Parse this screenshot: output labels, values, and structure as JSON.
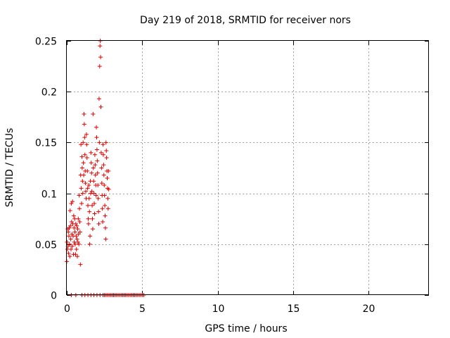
{
  "chart_data": {
    "type": "scatter",
    "title": "Day 219 of 2018, SRMTID for receiver nors",
    "xlabel": "GPS time / hours",
    "ylabel": "SRMTID / TECUs",
    "xlim": [
      0,
      24
    ],
    "ylim": [
      0,
      0.25
    ],
    "xticks": [
      0,
      5,
      10,
      15,
      20
    ],
    "xtick_labels": [
      "0",
      "5",
      "10",
      "15",
      "20"
    ],
    "yticks": [
      0,
      0.05,
      0.1,
      0.15,
      0.2,
      0.25
    ],
    "ytick_labels": [
      "0",
      "0.05",
      "0.1",
      "0.15",
      "0.2",
      "0.25"
    ],
    "grid": true,
    "legend": "none",
    "marker": "plus",
    "color": "#dd0000",
    "series": [
      {
        "points": [
          [
            0.0,
            0.033
          ],
          [
            0.02,
            0.052
          ],
          [
            0.04,
            0.045
          ],
          [
            0.06,
            0.065
          ],
          [
            0.08,
            0.048
          ],
          [
            0.1,
            0.062
          ],
          [
            0.12,
            0.041
          ],
          [
            0.14,
            0.058
          ],
          [
            0.16,
            0.066
          ],
          [
            0.18,
            0.05
          ],
          [
            0.2,
            0.038
          ],
          [
            0.22,
            0.083
          ],
          [
            0.24,
            0.068
          ],
          [
            0.26,
            0.055
          ],
          [
            0.28,
            0.045
          ],
          [
            0.3,
            0.09
          ],
          [
            0.32,
            0.072
          ],
          [
            0.34,
            0.06
          ],
          [
            0.36,
            0.048
          ],
          [
            0.38,
            0.092
          ],
          [
            0.4,
            0.07
          ],
          [
            0.42,
            0.058
          ],
          [
            0.44,
            0.04
          ],
          [
            0.46,
            0.078
          ],
          [
            0.48,
            0.066
          ],
          [
            0.5,
            0.052
          ],
          [
            0.52,
            0.075
          ],
          [
            0.54,
            0.062
          ],
          [
            0.56,
            0.05
          ],
          [
            0.58,
            0.04
          ],
          [
            0.6,
            0.07
          ],
          [
            0.62,
            0.058
          ],
          [
            0.64,
            0.045
          ],
          [
            0.66,
            0.068
          ],
          [
            0.68,
            0.055
          ],
          [
            0.7,
            0.038
          ],
          [
            0.72,
            0.065
          ],
          [
            0.74,
            0.052
          ],
          [
            0.76,
            0.075
          ],
          [
            0.78,
            0.06
          ],
          [
            0.8,
            0.05
          ],
          [
            0.82,
            0.098
          ],
          [
            0.84,
            0.085
          ],
          [
            0.86,
            0.072
          ],
          [
            0.88,
            0.062
          ],
          [
            0.9,
            0.03
          ],
          [
            0.92,
            0.118
          ],
          [
            0.94,
            0.148
          ],
          [
            0.96,
            0.105
          ],
          [
            0.98,
            0.09
          ],
          [
            1.0,
            0.136
          ],
          [
            1.02,
            0.125
          ],
          [
            1.04,
            0.112
          ],
          [
            1.06,
            0.1
          ],
          [
            1.08,
            0.15
          ],
          [
            1.1,
            0.13
          ],
          [
            1.12,
            0.118
          ],
          [
            1.14,
            0.178
          ],
          [
            1.16,
            0.168
          ],
          [
            1.18,
            0.155
          ],
          [
            1.2,
            0.138
          ],
          [
            1.22,
            0.122
          ],
          [
            1.24,
            0.11
          ],
          [
            1.26,
            0.102
          ],
          [
            1.28,
            0.095
          ],
          [
            1.3,
            0.158
          ],
          [
            1.32,
            0.148
          ],
          [
            1.34,
            0.135
          ],
          [
            1.36,
            0.122
          ],
          [
            1.38,
            0.105
          ],
          [
            1.4,
            0.088
          ],
          [
            1.42,
            0.075
          ],
          [
            1.44,
            0.07
          ],
          [
            1.46,
            0.108
          ],
          [
            1.48,
            0.095
          ],
          [
            1.5,
            0.082
          ],
          [
            1.52,
            0.05
          ],
          [
            1.54,
            0.058
          ],
          [
            1.56,
            0.112
          ],
          [
            1.58,
            0.1
          ],
          [
            1.6,
            0.14
          ],
          [
            1.62,
            0.13
          ],
          [
            1.64,
            0.12
          ],
          [
            1.66,
            0.102
          ],
          [
            1.68,
            0.088
          ],
          [
            1.7,
            0.075
          ],
          [
            1.72,
            0.065
          ],
          [
            1.74,
            0.178
          ],
          [
            1.76,
            0.125
          ],
          [
            1.78,
            0.112
          ],
          [
            1.8,
            0.1
          ],
          [
            1.82,
            0.09
          ],
          [
            1.84,
            0.08
          ],
          [
            1.86,
            0.138
          ],
          [
            1.88,
            0.128
          ],
          [
            1.9,
            0.118
          ],
          [
            1.92,
            0.108
          ],
          [
            1.94,
            0.098
          ],
          [
            1.96,
            0.165
          ],
          [
            1.98,
            0.155
          ],
          [
            2.0,
            0.143
          ],
          [
            2.02,
            0.132
          ],
          [
            2.04,
            0.12
          ],
          [
            2.06,
            0.108
          ],
          [
            2.08,
            0.095
          ],
          [
            2.1,
            0.082
          ],
          [
            2.12,
            0.07
          ],
          [
            2.14,
            0.193
          ],
          [
            2.16,
            0.15
          ],
          [
            2.18,
            0.225
          ],
          [
            2.2,
            0.245
          ],
          [
            2.22,
            0.25
          ],
          [
            2.24,
            0.234
          ],
          [
            2.26,
            0.185
          ],
          [
            2.28,
            0.14
          ],
          [
            2.3,
            0.125
          ],
          [
            2.32,
            0.11
          ],
          [
            2.34,
            0.098
          ],
          [
            2.36,
            0.085
          ],
          [
            2.38,
            0.072
          ],
          [
            2.4,
            0.148
          ],
          [
            2.42,
            0.138
          ],
          [
            2.44,
            0.128
          ],
          [
            2.46,
            0.118
          ],
          [
            2.48,
            0.108
          ],
          [
            2.5,
            0.098
          ],
          [
            2.52,
            0.088
          ],
          [
            2.54,
            0.078
          ],
          [
            2.56,
            0.066
          ],
          [
            2.58,
            0.055
          ],
          [
            2.6,
            0.15
          ],
          [
            2.62,
            0.142
          ],
          [
            2.64,
            0.135
          ],
          [
            2.66,
            0.122
          ],
          [
            2.68,
            0.115
          ],
          [
            2.7,
            0.105
          ],
          [
            2.72,
            0.095
          ],
          [
            2.74,
            0.085
          ],
          [
            2.76,
            0.122
          ],
          [
            2.78,
            0.104
          ],
          [
            0.3,
            0.0
          ],
          [
            0.6,
            0.0
          ],
          [
            1.0,
            0.0
          ],
          [
            1.2,
            0.0
          ],
          [
            1.4,
            0.0
          ],
          [
            1.6,
            0.0
          ],
          [
            1.8,
            0.0
          ],
          [
            2.0,
            0.0
          ],
          [
            2.2,
            0.0
          ],
          [
            2.4,
            0.0
          ],
          [
            2.5,
            0.0
          ],
          [
            2.6,
            0.0
          ],
          [
            2.7,
            0.0
          ],
          [
            2.8,
            0.0
          ],
          [
            2.9,
            0.0
          ],
          [
            3.0,
            0.0
          ],
          [
            3.1,
            0.0
          ],
          [
            3.2,
            0.0
          ],
          [
            3.3,
            0.0
          ],
          [
            3.4,
            0.0
          ],
          [
            3.5,
            0.0
          ],
          [
            3.6,
            0.0
          ],
          [
            3.7,
            0.0
          ],
          [
            3.8,
            0.0
          ],
          [
            3.9,
            0.0
          ],
          [
            4.0,
            0.0
          ],
          [
            4.1,
            0.0
          ],
          [
            4.2,
            0.0
          ],
          [
            4.3,
            0.0
          ],
          [
            4.4,
            0.0
          ],
          [
            4.5,
            0.0
          ],
          [
            4.6,
            0.0
          ],
          [
            4.7,
            0.0
          ],
          [
            4.8,
            0.0
          ],
          [
            4.9,
            0.0
          ],
          [
            5.0,
            0.0
          ],
          [
            5.1,
            0.0
          ]
        ]
      }
    ]
  }
}
